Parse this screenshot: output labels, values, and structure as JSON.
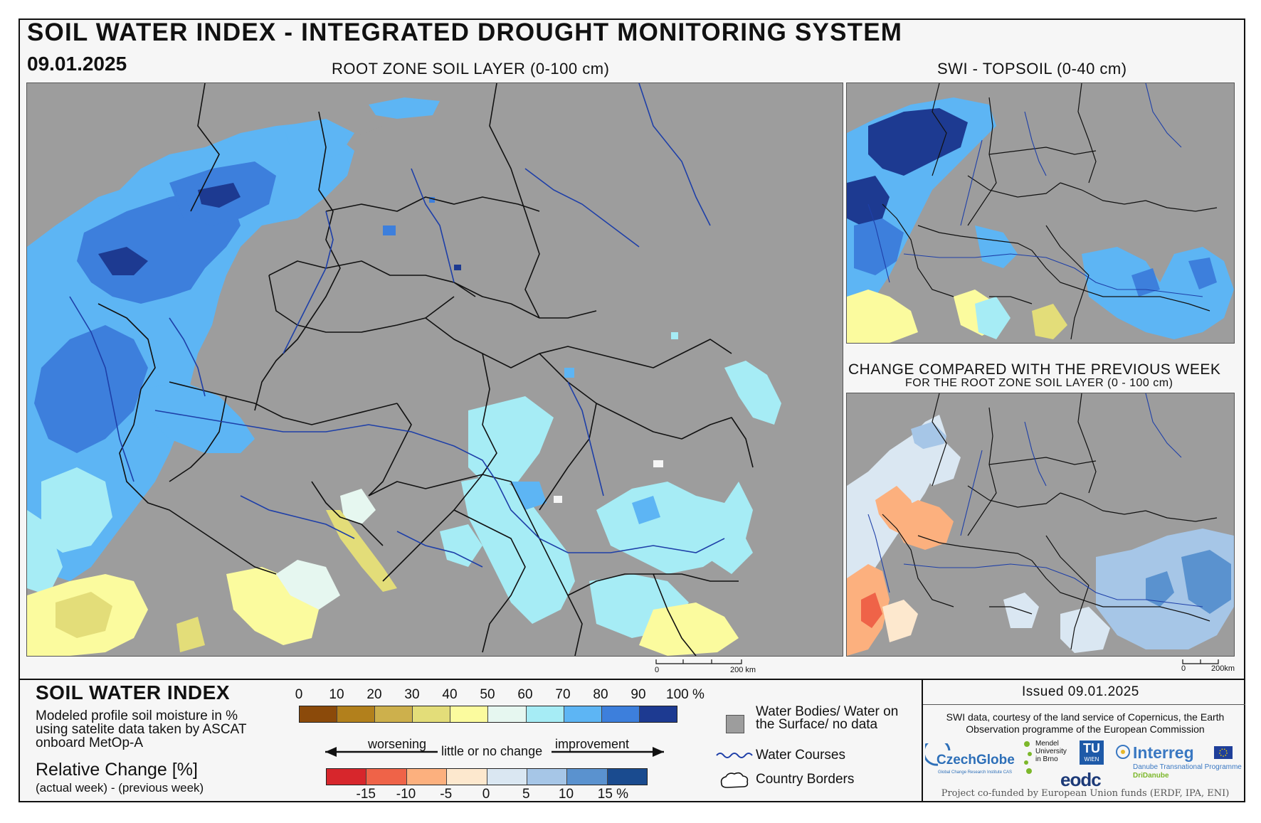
{
  "header": {
    "title": "SOIL WATER INDEX - INTEGRATED DROUGHT MONITORING SYSTEM",
    "date": "09.01.2025"
  },
  "maps": {
    "main_title": "ROOT ZONE SOIL LAYER (0-100 cm)",
    "topsoil_title": "SWI - TOPSOIL (0-40 cm)",
    "change_title": "CHANGE COMPARED WITH THE PREVIOUS WEEK",
    "change_subtitle": "FOR THE ROOT ZONE SOIL LAYER (0 - 100 cm)",
    "scale_main": {
      "zero": "0",
      "end": "200 km"
    },
    "scale_small": {
      "zero": "0",
      "end": "200km"
    }
  },
  "legend": {
    "swi_title": "SOIL WATER INDEX",
    "swi_description": "Modeled profile soil moisture in % using satelite data taken by ASCAT onboard MetOp-A",
    "relative_title": "Relative Change [%]",
    "relative_sub": "(actual week) - (previous week)",
    "swi_ticks": [
      "0",
      "10",
      "20",
      "30",
      "40",
      "50",
      "60",
      "70",
      "80",
      "90",
      "100 %"
    ],
    "swi_colors": [
      "#8b4a0a",
      "#b2801c",
      "#cdb04c",
      "#e3dd79",
      "#fbfb9e",
      "#e6f7f0",
      "#a6ecf5",
      "#5db5f4",
      "#3d7fdc",
      "#1d3a91"
    ],
    "change_ticks": [
      "-15",
      "-10",
      "-5",
      "0",
      "5",
      "10",
      "15 %"
    ],
    "change_colors": [
      "#d7262c",
      "#ef6348",
      "#fcb07e",
      "#fde8ce",
      "#dae7f2",
      "#a6c6e7",
      "#5a92cf",
      "#1a4b8f"
    ],
    "arrow_left": "worsening",
    "arrow_middle": "little or no change",
    "arrow_right": "improvement",
    "symbols": {
      "water_bodies": "Water Bodies/ Water on the Surface/ no data",
      "water_courses": "Water Courses",
      "country_borders": "Country Borders"
    }
  },
  "footer": {
    "issued": "Issued 09.01.2025",
    "credit": "SWI data, courtesy of the land service of Copernicus, the Earth Observation programme of the European Commission",
    "funded": "Project co-funded by European Union funds (ERDF, IPA, ENI)",
    "logos": {
      "czechglobe": "CzechGlobe",
      "czechglobe_sub": "Global Change Research Institute CAS",
      "mendel": "Mendel University in Brno",
      "tu": "TU",
      "tu_sub": "WIEN",
      "eodc": "eodc",
      "interreg": "Interreg",
      "interreg_sub": "Danube Transnational Programme",
      "dridanube": "DriDanube"
    }
  }
}
